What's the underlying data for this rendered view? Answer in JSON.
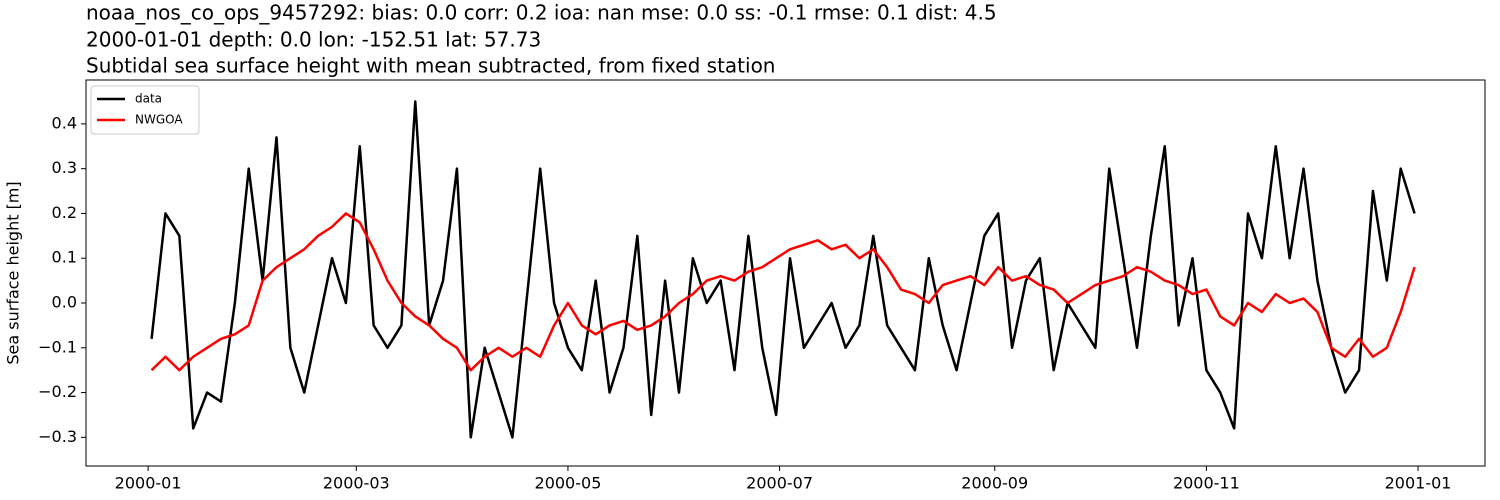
{
  "chart_data": {
    "type": "line",
    "titles": [
      "noaa_nos_co_ops_9457292: bias: 0.0  corr: 0.2  ioa: nan  mse: 0.0  ss: -0.1  rmse: 0.1  dist: 4.5",
      "2000-01-01 depth: 0.0 lon: -152.51 lat: 57.73",
      "Subtidal sea surface height with mean subtracted, from fixed station"
    ],
    "y_label": "Sea surface height [m]",
    "x": [
      1,
      5,
      9,
      13,
      17,
      21,
      25,
      29,
      33,
      37,
      41,
      45,
      49,
      53,
      57,
      61,
      65,
      69,
      73,
      77,
      81,
      85,
      89,
      93,
      97,
      101,
      105,
      109,
      113,
      117,
      121,
      125,
      129,
      133,
      137,
      141,
      145,
      149,
      153,
      157,
      161,
      165,
      169,
      173,
      177,
      181,
      185,
      189,
      193,
      197,
      201,
      205,
      209,
      213,
      217,
      221,
      225,
      229,
      233,
      237,
      241,
      245,
      249,
      253,
      257,
      261,
      265,
      269,
      273,
      277,
      281,
      285,
      289,
      293,
      297,
      301,
      305,
      309,
      313,
      317,
      321,
      325,
      329,
      333,
      337,
      341,
      345,
      349,
      353,
      357,
      361,
      365
    ],
    "series": [
      {
        "name": "data",
        "color": "#000000",
        "values": [
          -0.08,
          0.2,
          0.15,
          -0.28,
          -0.2,
          -0.22,
          0.0,
          0.3,
          0.05,
          0.37,
          -0.1,
          -0.2,
          -0.05,
          0.1,
          0.0,
          0.35,
          -0.05,
          -0.1,
          -0.05,
          0.45,
          -0.05,
          0.05,
          0.3,
          -0.3,
          -0.1,
          -0.2,
          -0.3,
          0.0,
          0.3,
          0.0,
          -0.1,
          -0.15,
          0.05,
          -0.2,
          -0.1,
          0.15,
          -0.25,
          0.05,
          -0.2,
          0.1,
          0.0,
          0.05,
          -0.15,
          0.15,
          -0.1,
          -0.25,
          0.1,
          -0.1,
          -0.05,
          0.0,
          -0.1,
          -0.05,
          0.15,
          -0.05,
          -0.1,
          -0.15,
          0.1,
          -0.05,
          -0.15,
          0.0,
          0.15,
          0.2,
          -0.1,
          0.05,
          0.1,
          -0.15,
          0.0,
          -0.05,
          -0.1,
          0.3,
          0.1,
          -0.1,
          0.15,
          0.35,
          -0.05,
          0.1,
          -0.15,
          -0.2,
          -0.28,
          0.2,
          0.1,
          0.35,
          0.1,
          0.3,
          0.05,
          -0.1,
          -0.2,
          -0.15,
          0.25,
          0.05,
          0.3,
          0.2
        ]
      },
      {
        "name": "NWGOA",
        "color": "#ff0000",
        "values": [
          -0.15,
          -0.12,
          -0.15,
          -0.12,
          -0.1,
          -0.08,
          -0.07,
          -0.05,
          0.05,
          0.08,
          0.1,
          0.12,
          0.15,
          0.17,
          0.2,
          0.18,
          0.12,
          0.05,
          0.0,
          -0.03,
          -0.05,
          -0.08,
          -0.1,
          -0.15,
          -0.12,
          -0.1,
          -0.12,
          -0.1,
          -0.12,
          -0.05,
          0.0,
          -0.05,
          -0.07,
          -0.05,
          -0.04,
          -0.06,
          -0.05,
          -0.03,
          0.0,
          0.02,
          0.05,
          0.06,
          0.05,
          0.07,
          0.08,
          0.1,
          0.12,
          0.13,
          0.14,
          0.12,
          0.13,
          0.1,
          0.12,
          0.08,
          0.03,
          0.02,
          0.0,
          0.04,
          0.05,
          0.06,
          0.04,
          0.08,
          0.05,
          0.06,
          0.04,
          0.03,
          0.0,
          0.02,
          0.04,
          0.05,
          0.06,
          0.08,
          0.07,
          0.05,
          0.04,
          0.02,
          0.03,
          -0.03,
          -0.05,
          0.0,
          -0.02,
          0.02,
          0.0,
          0.01,
          -0.02,
          -0.1,
          -0.12,
          -0.08,
          -0.12,
          -0.1,
          -0.02,
          0.08
        ]
      }
    ],
    "xlim": [
      -17.9,
      385.3
    ],
    "xticks": [
      {
        "value": 0,
        "label": "2000-01"
      },
      {
        "value": 60,
        "label": "2000-03"
      },
      {
        "value": 121,
        "label": "2000-05"
      },
      {
        "value": 182,
        "label": "2000-07"
      },
      {
        "value": 244,
        "label": "2000-09"
      },
      {
        "value": 305,
        "label": "2000-11"
      },
      {
        "value": 366,
        "label": "2001-01"
      }
    ],
    "ylim": [
      -0.364,
      0.498
    ],
    "yticks": [
      {
        "value": -0.3,
        "label": "−0.3"
      },
      {
        "value": -0.2,
        "label": "−0.2"
      },
      {
        "value": -0.1,
        "label": "−0.1"
      },
      {
        "value": 0,
        "label": "0.0"
      },
      0.1,
      0.2,
      0.3,
      0.4
    ],
    "legend": "upper left",
    "grid": false
  }
}
